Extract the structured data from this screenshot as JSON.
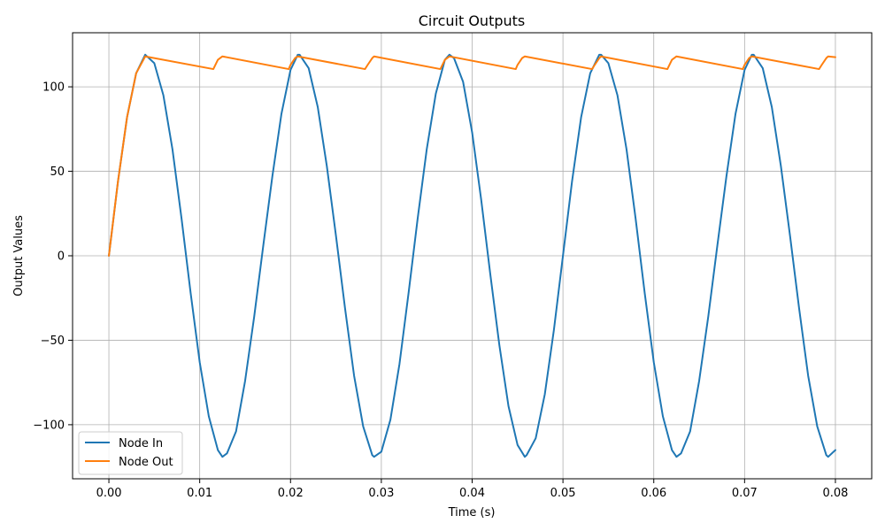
{
  "chart_data": {
    "type": "line",
    "title": "Circuit Outputs",
    "xlabel": "Time (s)",
    "ylabel": "Output Values",
    "xlim": [
      -0.004,
      0.084
    ],
    "ylim": [
      -132,
      132
    ],
    "xticks": [
      0.0,
      0.01,
      0.02,
      0.03,
      0.04,
      0.05,
      0.06,
      0.07,
      0.08
    ],
    "xtick_labels": [
      "0.00",
      "0.01",
      "0.02",
      "0.03",
      "0.04",
      "0.05",
      "0.06",
      "0.07",
      "0.08"
    ],
    "yticks": [
      -100,
      -50,
      0,
      50,
      100
    ],
    "ytick_labels": [
      "−100",
      "−50",
      "0",
      "50",
      "100"
    ],
    "grid": true,
    "legend_position": "bottom-left",
    "series": [
      {
        "name": "Node In",
        "color": "#1f77b4",
        "x": [
          0,
          0.001,
          0.002,
          0.003,
          0.004,
          0.005,
          0.006,
          0.007,
          0.008,
          0.009,
          0.01,
          0.011,
          0.012,
          0.0125,
          0.013,
          0.014,
          0.015,
          0.016,
          0.017,
          0.018,
          0.019,
          0.02,
          0.0208,
          0.021,
          0.022,
          0.023,
          0.024,
          0.025,
          0.026,
          0.027,
          0.028,
          0.029,
          0.0292,
          0.03,
          0.031,
          0.032,
          0.033,
          0.034,
          0.035,
          0.036,
          0.037,
          0.0375,
          0.038,
          0.039,
          0.04,
          0.041,
          0.042,
          0.043,
          0.044,
          0.045,
          0.0458,
          0.046,
          0.047,
          0.048,
          0.049,
          0.05,
          0.051,
          0.052,
          0.053,
          0.054,
          0.0542,
          0.055,
          0.056,
          0.057,
          0.058,
          0.059,
          0.06,
          0.061,
          0.062,
          0.0625,
          0.063,
          0.064,
          0.065,
          0.066,
          0.067,
          0.068,
          0.069,
          0.07,
          0.0708,
          0.071,
          0.072,
          0.073,
          0.074,
          0.075,
          0.076,
          0.077,
          0.078,
          0.079,
          0.0792,
          0.08
        ],
        "y": [
          0,
          44,
          82,
          108,
          119,
          114,
          95,
          63,
          22,
          -22,
          -63,
          -95,
          -115,
          -119,
          -117,
          -104,
          -74,
          -36,
          6,
          47,
          84,
          110,
          119,
          119,
          111,
          88,
          53,
          12,
          -31,
          -71,
          -101,
          -118,
          -119,
          -116,
          -97,
          -64,
          -22,
          22,
          63,
          96,
          116,
          119,
          117,
          103,
          73,
          33,
          -11,
          -53,
          -89,
          -112,
          -119,
          -118,
          -108,
          -82,
          -44,
          0,
          44,
          82,
          108,
          119,
          119,
          114,
          95,
          63,
          22,
          -22,
          -63,
          -95,
          -115,
          -119,
          -117,
          -104,
          -74,
          -36,
          6,
          47,
          84,
          110,
          119,
          119,
          111,
          88,
          53,
          12,
          -31,
          -71,
          -101,
          -118,
          -119,
          -115
        ]
      },
      {
        "name": "Node Out",
        "color": "#ff7f0e",
        "x": [
          0,
          0.001,
          0.002,
          0.003,
          0.004,
          0.0115,
          0.012,
          0.0125,
          0.0198,
          0.02,
          0.0205,
          0.0208,
          0.0282,
          0.0285,
          0.029,
          0.0292,
          0.0365,
          0.037,
          0.0375,
          0.0448,
          0.045,
          0.0455,
          0.0458,
          0.0532,
          0.0535,
          0.054,
          0.0542,
          0.0615,
          0.062,
          0.0625,
          0.0698,
          0.07,
          0.0705,
          0.0708,
          0.0782,
          0.0785,
          0.079,
          0.0792,
          0.08
        ],
        "y": [
          0,
          44,
          82,
          108,
          118,
          110.5,
          116,
          118,
          110.5,
          113,
          117,
          118,
          110.5,
          113,
          117,
          118,
          110.5,
          116,
          118,
          110.5,
          113,
          117,
          118,
          110.5,
          113,
          117,
          118,
          110.5,
          116,
          118,
          110.5,
          113,
          117,
          118,
          110.5,
          113,
          117,
          118,
          117.5
        ]
      }
    ]
  }
}
